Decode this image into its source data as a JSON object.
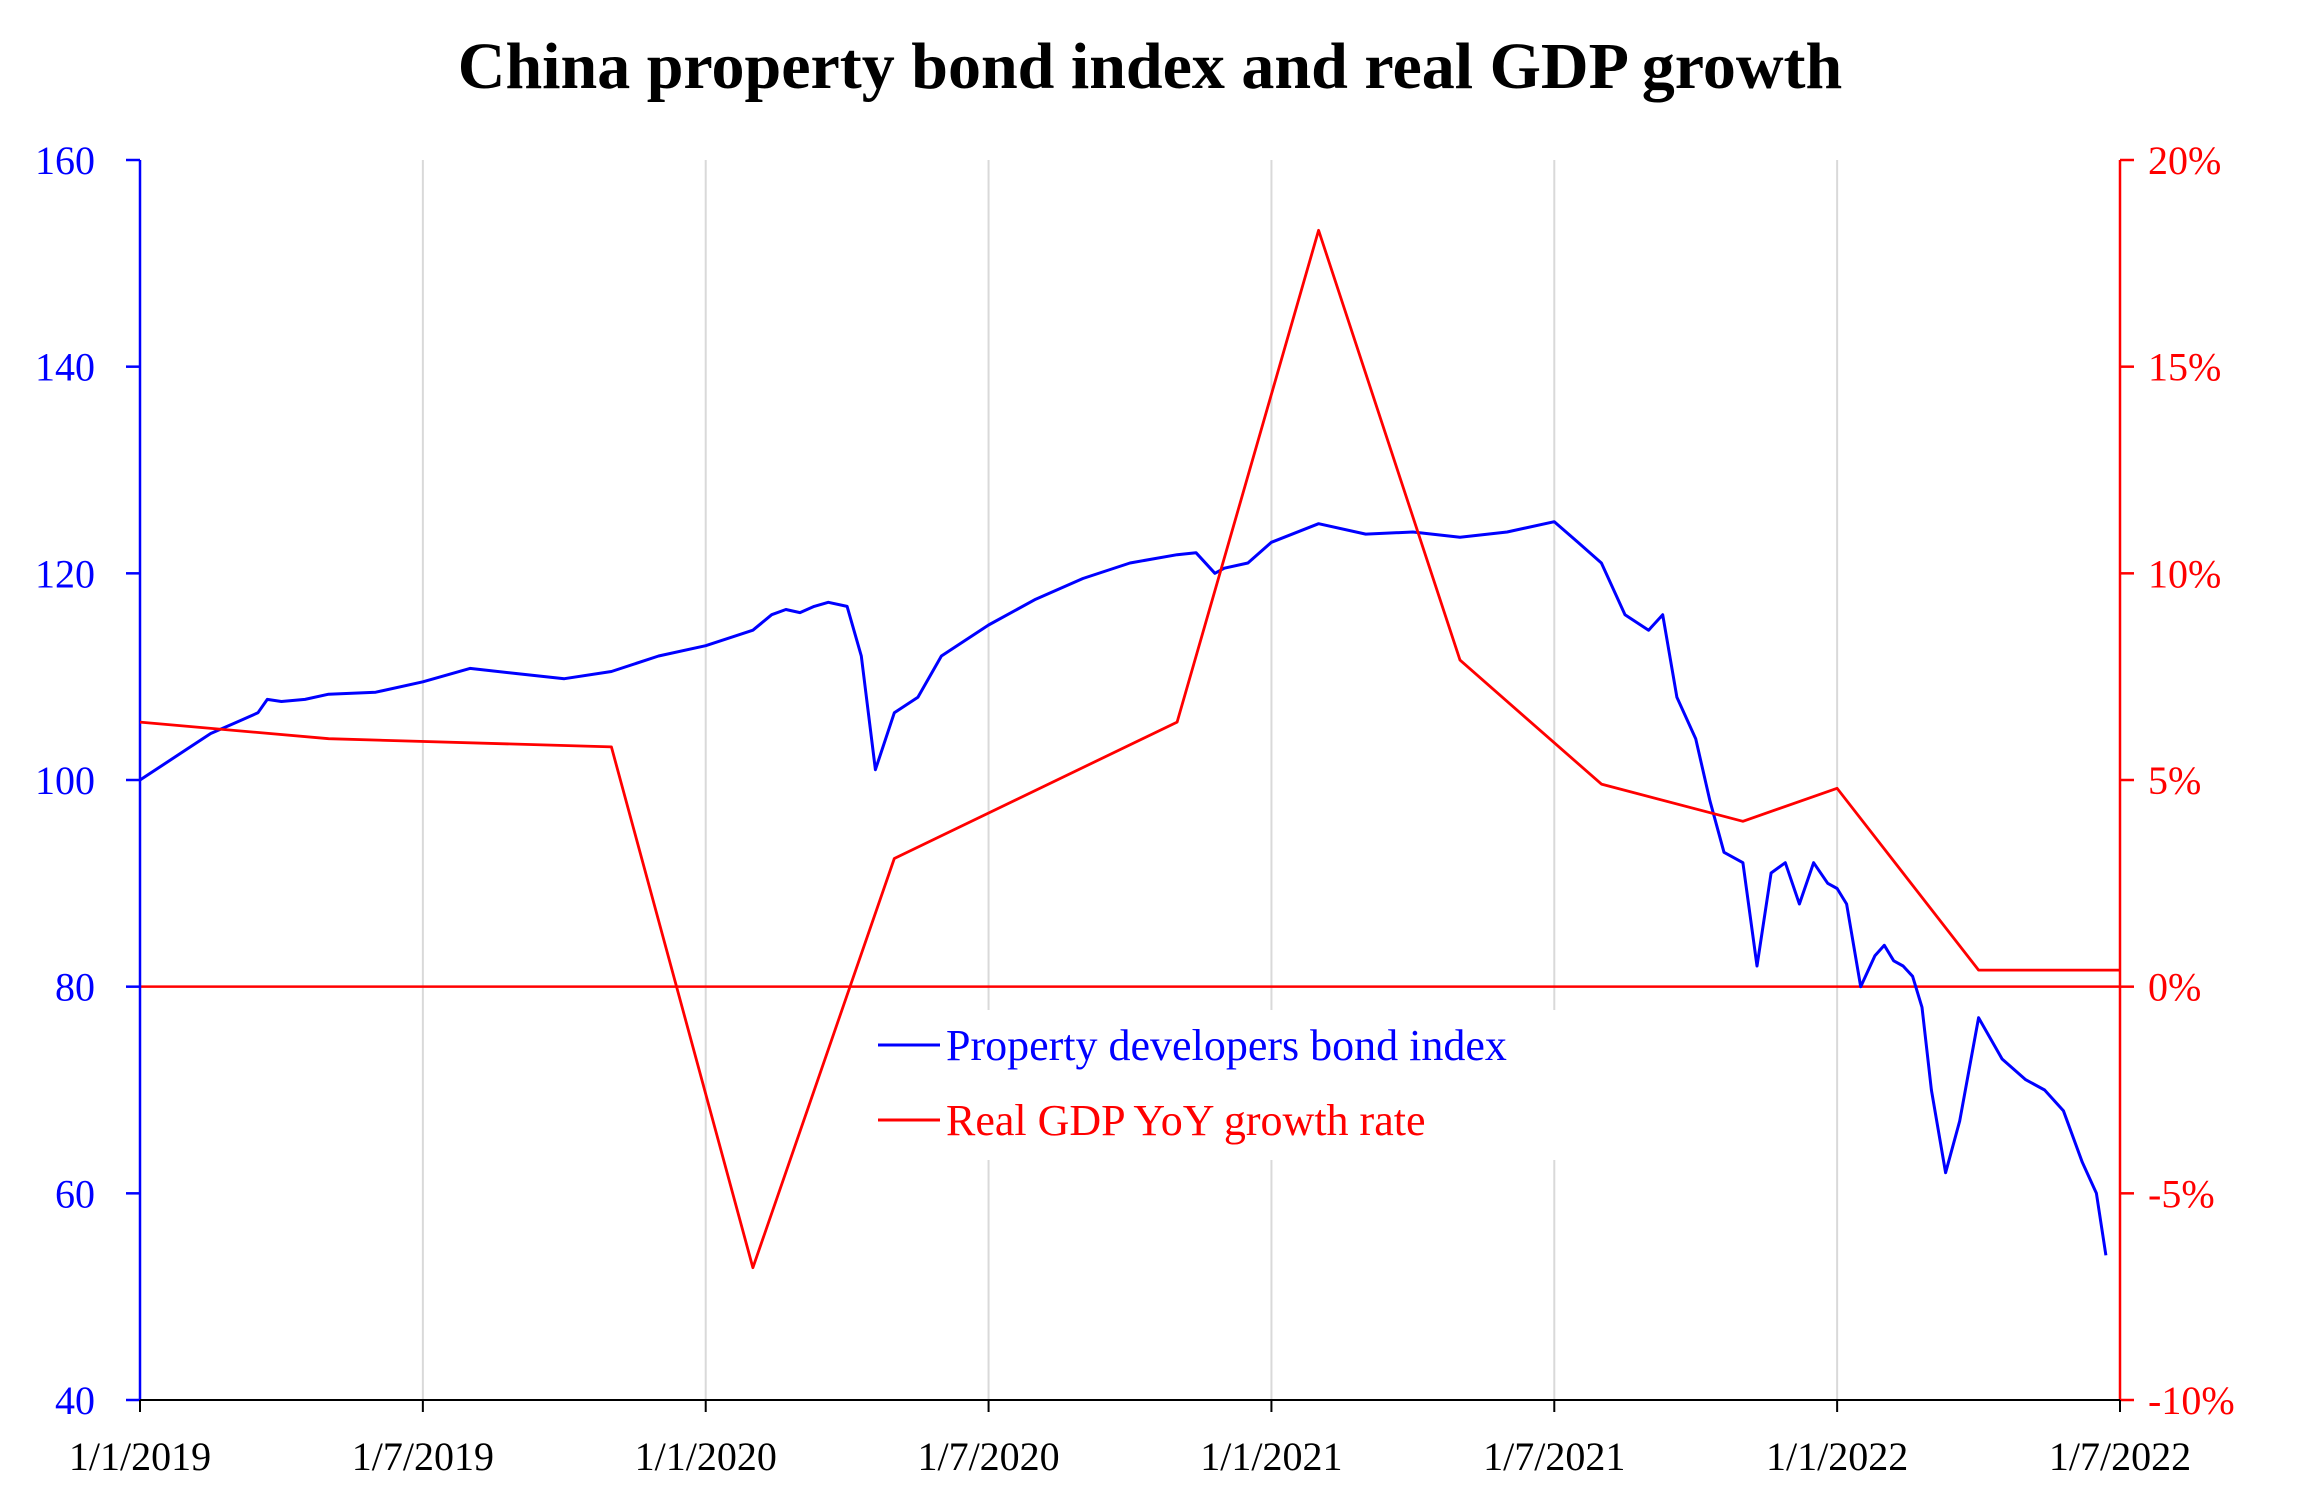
{
  "chart_data": {
    "type": "line",
    "title": "China property bond index and real GDP growth",
    "xlabel": "",
    "colors": {
      "bond": "#0000ff",
      "gdp": "#ff0000",
      "grid": "#d9d9d9",
      "zero_line": "#ff0000"
    },
    "x_ticks": [
      "1/1/2019",
      "1/7/2019",
      "1/1/2020",
      "1/7/2020",
      "1/1/2021",
      "1/7/2021",
      "1/1/2022",
      "1/7/2022"
    ],
    "x_range_months": [
      0,
      42
    ],
    "left_axis": {
      "ylim": [
        40,
        160
      ],
      "ticks": [
        "160",
        "140",
        "120",
        "100",
        "80",
        "60",
        "40"
      ],
      "tick_values": [
        160,
        140,
        120,
        100,
        80,
        60,
        40
      ]
    },
    "right_axis": {
      "ylim": [
        -10,
        20
      ],
      "ticks": [
        "20%",
        "15%",
        "10%",
        "5%",
        "0%",
        "-5%",
        "-10%"
      ],
      "tick_values": [
        20,
        15,
        10,
        5,
        0,
        -5,
        -10
      ]
    },
    "legend": {
      "position": "center-bottom",
      "entries": [
        "Property developers bond index",
        "Real GDP YoY growth rate"
      ]
    },
    "series": [
      {
        "name": "Property developers bond index",
        "axis": "left",
        "x_months": [
          0,
          0.5,
          1,
          1.5,
          2,
          2.5,
          2.7,
          3,
          3.5,
          4,
          5,
          6,
          7,
          8,
          9,
          10,
          11,
          12,
          13,
          13.4,
          13.7,
          14,
          14.3,
          14.6,
          15,
          15.3,
          15.6,
          16,
          16.5,
          17,
          18,
          19,
          20,
          21,
          22,
          22.4,
          22.8,
          23,
          23.5,
          24,
          25,
          26,
          27,
          28,
          29,
          30,
          30.5,
          31,
          31.5,
          32,
          32.3,
          32.6,
          33,
          33.3,
          33.6,
          34,
          34.3,
          34.6,
          34.9,
          35.2,
          35.5,
          35.8,
          36,
          36.2,
          36.5,
          36.8,
          37,
          37.2,
          37.4,
          37.6,
          37.8,
          38,
          38.3,
          38.6,
          39,
          39.5,
          40,
          40.4,
          40.8,
          41.2,
          41.5,
          41.7
        ],
        "values": [
          100,
          101.5,
          103,
          104.5,
          105.5,
          106.5,
          107.8,
          107.6,
          107.8,
          108.3,
          108.5,
          109.5,
          110.8,
          110.3,
          109.8,
          110.5,
          112,
          113,
          114.5,
          116,
          116.5,
          116.2,
          116.8,
          117.2,
          116.8,
          112,
          101,
          106.5,
          108,
          112,
          115,
          117.5,
          119.5,
          121,
          121.8,
          122,
          120,
          120.5,
          121,
          123,
          124.8,
          123.8,
          124,
          123.5,
          124,
          125,
          123,
          121,
          116,
          114.5,
          116,
          108,
          104,
          98,
          93,
          92,
          82,
          91,
          92,
          88,
          92,
          90,
          89.5,
          88,
          80,
          83,
          84,
          82.5,
          82,
          81,
          78,
          70,
          62,
          67,
          77,
          73,
          71,
          70,
          68,
          63,
          60,
          54
        ]
      },
      {
        "name": "Real GDP YoY growth rate",
        "axis": "right",
        "x_months": [
          0,
          4,
          10,
          13,
          16,
          22,
          25,
          28,
          31,
          34,
          36,
          39,
          42
        ],
        "values": [
          6.4,
          6.0,
          5.8,
          -6.8,
          3.1,
          6.4,
          18.3,
          7.9,
          4.9,
          4.0,
          4.8,
          0.4,
          0.4
        ]
      }
    ]
  }
}
